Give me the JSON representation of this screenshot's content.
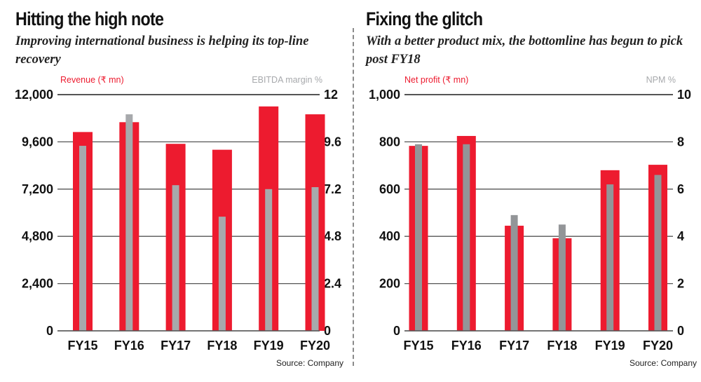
{
  "colors": {
    "primary_bar": "#ED1B2F",
    "secondary_bar_left": "#A7A9AC",
    "secondary_bar_right": "#939598",
    "gridline": "#555555",
    "primary_label": "#ED1B2F",
    "secondary_label": "#A7A9AC"
  },
  "chart_data": [
    {
      "type": "bar",
      "title": "Hitting the high note",
      "subtitle": "Improving international business is helping its top-line recovery",
      "categories": [
        "FY15",
        "FY16",
        "FY17",
        "FY18",
        "FY19",
        "FY20"
      ],
      "series": [
        {
          "name": "Revenue (₹ mn)",
          "axis": "left",
          "values": [
            10100,
            10600,
            9500,
            9200,
            11400,
            11000
          ]
        },
        {
          "name": "EBITDA margin %",
          "axis": "right",
          "values": [
            9.4,
            11.0,
            7.4,
            5.8,
            7.2,
            7.3
          ]
        }
      ],
      "ylabel_left": "Revenue (₹ mn)",
      "ylabel_right": "EBITDA margin %",
      "ylim_left": [
        0,
        12000
      ],
      "ylim_right": [
        0,
        12
      ],
      "yticks_left": [
        "0",
        "2,400",
        "4,800",
        "7,200",
        "9,600",
        "12,000"
      ],
      "yticks_right": [
        "0",
        "2.4",
        "4.8",
        "7.2",
        "9.6",
        "12"
      ],
      "grid": true,
      "source": "Source: Company"
    },
    {
      "type": "bar",
      "title": "Fixing the glitch",
      "subtitle": "With a better product mix, the bottomline has begun to pick post FY18",
      "categories": [
        "FY15",
        "FY16",
        "FY17",
        "FY18",
        "FY19",
        "FY20"
      ],
      "series": [
        {
          "name": "Net profit (₹ mn)",
          "axis": "left",
          "values": [
            783,
            825,
            445,
            392,
            680,
            703
          ]
        },
        {
          "name": "NPM %",
          "axis": "right",
          "values": [
            7.9,
            7.9,
            4.9,
            4.5,
            6.2,
            6.6
          ]
        }
      ],
      "ylabel_left": "Net profit (₹ mn)",
      "ylabel_right": "NPM %",
      "ylim_left": [
        0,
        1000
      ],
      "ylim_right": [
        0,
        10
      ],
      "yticks_left": [
        "0",
        "200",
        "400",
        "600",
        "800",
        "1,000"
      ],
      "yticks_right": [
        "0",
        "2",
        "4",
        "6",
        "8",
        "10"
      ],
      "grid": true,
      "source": "Source: Company"
    }
  ]
}
